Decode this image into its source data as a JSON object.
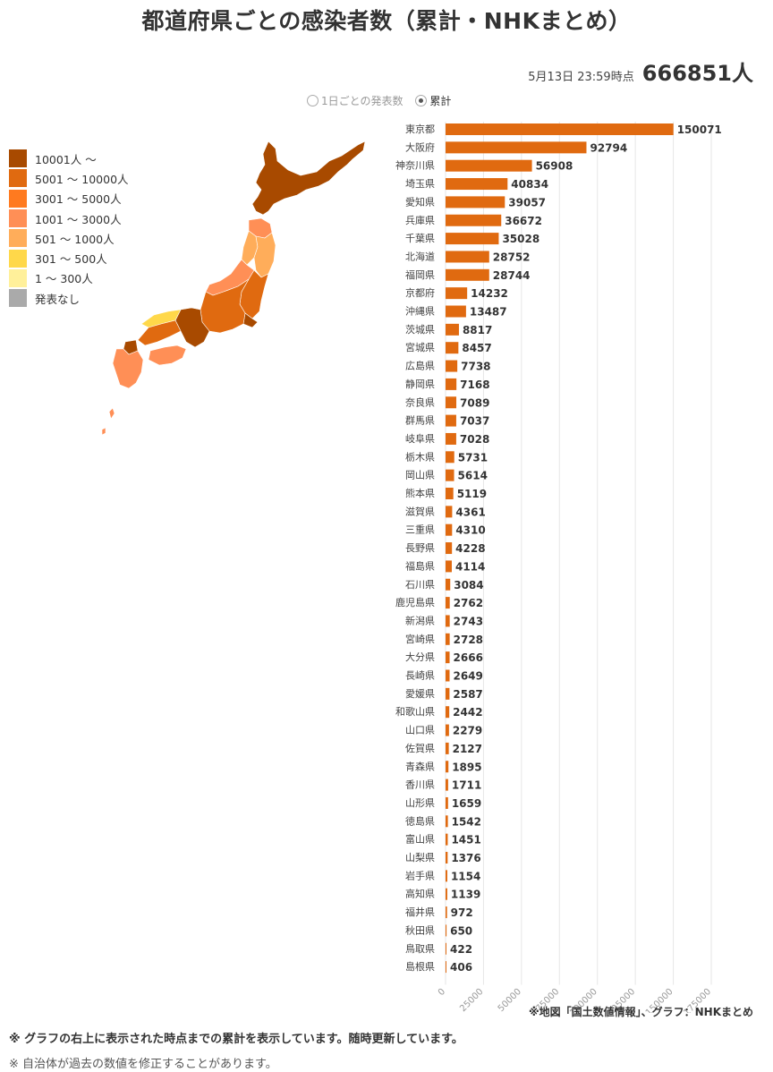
{
  "header": {
    "title": "都道府県ごとの感染者数（累計・NHKまとめ）",
    "timestamp": "5月13日 23:59時点",
    "total": "666851人"
  },
  "toggle": {
    "daily_label": "1日ごとの発表数",
    "cumulative_label": "累計",
    "selected": "累計"
  },
  "legend": [
    {
      "label": "10001人 ～",
      "color": "#a84a00"
    },
    {
      "label": "5001 ～ 10000人",
      "color": "#e06a10"
    },
    {
      "label": "3001 ～ 5000人",
      "color": "#ff7a1f"
    },
    {
      "label": "1001 ～ 3000人",
      "color": "#ff8f56"
    },
    {
      "label": "501 ～ 1000人",
      "color": "#ffad5a"
    },
    {
      "label": "301 ～ 500人",
      "color": "#ffd84a"
    },
    {
      "label": "1 ～ 300人",
      "color": "#fff09a"
    },
    {
      "label": "発表なし",
      "color": "#aaaaaa"
    }
  ],
  "chart_data": {
    "type": "bar",
    "orientation": "horizontal",
    "categories": [
      "東京都",
      "大阪府",
      "神奈川県",
      "埼玉県",
      "愛知県",
      "兵庫県",
      "千葉県",
      "北海道",
      "福岡県",
      "京都府",
      "沖縄県",
      "茨城県",
      "宮城県",
      "広島県",
      "静岡県",
      "奈良県",
      "群馬県",
      "岐阜県",
      "栃木県",
      "岡山県",
      "熊本県",
      "滋賀県",
      "三重県",
      "長野県",
      "福島県",
      "石川県",
      "鹿児島県",
      "新潟県",
      "宮崎県",
      "大分県",
      "長崎県",
      "愛媛県",
      "和歌山県",
      "山口県",
      "佐賀県",
      "青森県",
      "香川県",
      "山形県",
      "徳島県",
      "富山県",
      "山梨県",
      "岩手県",
      "高知県",
      "福井県",
      "秋田県",
      "鳥取県",
      "島根県"
    ],
    "values": [
      150071,
      92794,
      56908,
      40834,
      39057,
      36672,
      35028,
      28752,
      28744,
      14232,
      13487,
      8817,
      8457,
      7738,
      7168,
      7089,
      7037,
      7028,
      5731,
      5614,
      5119,
      4361,
      4310,
      4228,
      4114,
      3084,
      2762,
      2743,
      2728,
      2666,
      2649,
      2587,
      2442,
      2279,
      2127,
      1895,
      1711,
      1659,
      1542,
      1451,
      1376,
      1154,
      1139,
      972,
      650,
      422,
      406
    ],
    "xlim": [
      0,
      175000
    ],
    "x_ticks": [
      "0",
      "25000",
      "50000",
      "75000",
      "100000",
      "125000",
      "150000",
      "175000"
    ],
    "bar_color": "#e06a10",
    "grid": true
  },
  "map": {
    "regions": {
      "hokkaido": "#a84a00",
      "tohoku_north": "#ff8f56",
      "tohoku_east": "#ffad5a",
      "tohoku_west": "#ffad5a",
      "kanto": "#e06a10",
      "tokyo": "#a84a00",
      "chubu": "#e06a10",
      "hokuriku": "#ff8f56",
      "kansai": "#a84a00",
      "chugoku_south": "#e06a10",
      "chugoku_north": "#ffd84a",
      "shikoku": "#ff8f56",
      "kyushu": "#ff8f56",
      "fukuoka": "#a84a00",
      "okinawa": "#ff8f56"
    }
  },
  "footer": {
    "credit": "※地図「国土数値情報」、グラフ：NHKまとめ",
    "note1": "※ グラフの右上に表示された時点までの累計を表示しています。随時更新しています。",
    "note2": "※ 自治体が過去の数値を修正することがあります。"
  }
}
